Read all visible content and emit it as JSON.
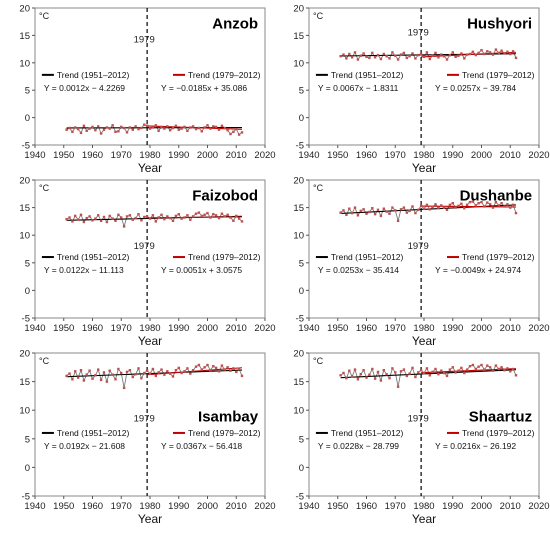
{
  "shared": {
    "type": "line",
    "unit_label": "°C",
    "xlabel": "Year",
    "x_ticks": [
      1940,
      1950,
      1960,
      1970,
      1980,
      1990,
      2000,
      2010,
      2020
    ],
    "y_ticks": [
      -5,
      0,
      5,
      10,
      15,
      20
    ],
    "xlim": [
      1940,
      2020
    ],
    "ylim": [
      -5,
      20
    ],
    "marker_year": 1979,
    "marker_label": "1979",
    "trend1_label": "Trend (1951–2012)",
    "trend2_label": "Trend (1979–2012)",
    "colors": {
      "observed": "#7a7a7a",
      "markers": "#c0504d",
      "trend1": "#000000",
      "trend2": "#c00000",
      "anomaly": "#c9a227",
      "marker_line": "#000000"
    }
  },
  "chart_data": [
    {
      "title": "Anzob",
      "years_start": 1951,
      "values": [
        -2.2,
        -1.9,
        -2.6,
        -1.8,
        -2.1,
        -2.8,
        -1.5,
        -2.4,
        -2.0,
        -1.7,
        -2.3,
        -1.6,
        -2.9,
        -2.2,
        -1.8,
        -2.0,
        -1.4,
        -2.6,
        -2.5,
        -1.7,
        -1.9,
        -2.7,
        -1.8,
        -2.2,
        -1.6,
        -2.1,
        -1.9,
        -1.3,
        -1.5,
        -2.0,
        -1.8,
        -1.4,
        -2.4,
        -1.7,
        -2.0,
        -1.6,
        -2.3,
        -1.9,
        -1.5,
        -2.2,
        -2.0,
        -1.7,
        -2.4,
        -1.8,
        -1.6,
        -2.1,
        -1.9,
        -2.5,
        -1.8,
        -1.4,
        -2.0,
        -1.6,
        -1.7,
        -2.2,
        -1.5,
        -1.9,
        -2.3,
        -3.0,
        -2.6,
        -2.1,
        -3.1,
        -2.7
      ],
      "trend1": {
        "slope": 0.0012,
        "intercept": -4.2269,
        "equation": "Y = 0.0012x − 4.2269"
      },
      "trend2": {
        "slope": -0.0185,
        "intercept": 35.086,
        "equation": "Y = −0.0185x + 35.086"
      }
    },
    {
      "title": "Hushyori",
      "years_start": 1951,
      "values": [
        11.2,
        11.5,
        10.8,
        11.6,
        11.0,
        11.9,
        10.6,
        11.3,
        11.7,
        11.1,
        10.9,
        11.8,
        11.0,
        11.4,
        10.7,
        11.6,
        11.2,
        10.8,
        11.9,
        11.3,
        10.6,
        11.5,
        11.8,
        10.9,
        11.2,
        11.7,
        10.8,
        11.4,
        11.6,
        11.1,
        11.9,
        10.7,
        11.3,
        11.8,
        11.0,
        11.5,
        11.2,
        10.6,
        11.4,
        11.9,
        11.1,
        11.3,
        11.7,
        10.8,
        11.5,
        11.6,
        12.0,
        11.4,
        11.8,
        12.3,
        11.6,
        12.1,
        11.9,
        11.5,
        12.4,
        11.8,
        12.2,
        11.7,
        12.0,
        11.6,
        12.1,
        10.9
      ],
      "trend1": {
        "slope": 0.0067,
        "intercept": -1.8311,
        "equation": "Y = 0.0067x − 1.8311"
      },
      "trend2": {
        "slope": 0.0257,
        "intercept": -39.784,
        "equation": "Y = 0.0257x − 39.784"
      }
    },
    {
      "title": "Faizobod",
      "years_start": 1951,
      "values": [
        12.9,
        13.2,
        12.5,
        13.5,
        12.8,
        13.7,
        12.4,
        13.1,
        13.4,
        12.7,
        13.0,
        13.6,
        12.6,
        13.3,
        12.4,
        13.5,
        13.0,
        12.6,
        13.7,
        13.2,
        11.6,
        13.4,
        13.6,
        12.8,
        13.1,
        13.8,
        12.7,
        13.3,
        13.4,
        13.0,
        13.6,
        12.5,
        13.2,
        13.7,
        12.9,
        13.4,
        13.1,
        12.6,
        13.5,
        13.8,
        13.0,
        13.2,
        13.6,
        12.8,
        13.4,
        13.9,
        14.1,
        13.5,
        13.7,
        14.0,
        13.2,
        13.8,
        13.6,
        13.1,
        13.9,
        13.4,
        13.7,
        13.2,
        12.6,
        13.5,
        13.0,
        12.5
      ],
      "trend1": {
        "slope": 0.0122,
        "intercept": -11.113,
        "equation": "Y = 0.0122x − 11.113"
      },
      "trend2": {
        "slope": 0.0051,
        "intercept": 3.0575,
        "equation": "Y = 0.0051x + 3.0575"
      }
    },
    {
      "title": "Dushanbe",
      "years_start": 1951,
      "values": [
        14.1,
        14.5,
        13.7,
        14.8,
        14.0,
        15.0,
        13.6,
        14.4,
        14.7,
        13.9,
        14.2,
        14.9,
        13.8,
        14.6,
        13.5,
        14.8,
        14.3,
        13.9,
        15.0,
        14.5,
        12.6,
        14.7,
        15.0,
        14.1,
        14.4,
        15.2,
        14.0,
        14.6,
        15.3,
        14.8,
        15.5,
        14.7,
        15.1,
        15.6,
        14.9,
        15.4,
        15.0,
        14.6,
        15.5,
        15.8,
        15.0,
        15.3,
        15.7,
        14.9,
        15.5,
        16.0,
        16.1,
        15.4,
        15.8,
        16.0,
        15.2,
        15.9,
        15.6,
        15.0,
        16.0,
        15.4,
        15.8,
        15.2,
        15.6,
        15.0,
        15.5,
        14.0
      ],
      "trend1": {
        "slope": 0.0253,
        "intercept": -35.414,
        "equation": "Y = 0.0253x − 35.414"
      },
      "trend2": {
        "slope": -0.0049,
        "intercept": 24.974,
        "equation": "Y = −0.0049x + 24.974"
      }
    },
    {
      "title": "Isambay",
      "years_start": 1951,
      "values": [
        16.0,
        16.4,
        15.4,
        16.8,
        15.7,
        17.0,
        15.2,
        16.2,
        16.9,
        15.5,
        16.1,
        17.1,
        15.3,
        16.6,
        15.0,
        16.9,
        16.2,
        15.4,
        17.2,
        16.5,
        13.9,
        16.7,
        17.0,
        15.8,
        16.3,
        17.3,
        15.6,
        16.5,
        16.9,
        16.4,
        17.2,
        16.0,
        16.6,
        17.1,
        16.2,
        16.8,
        16.4,
        15.9,
        17.0,
        17.4,
        16.5,
        16.8,
        17.3,
        16.4,
        17.0,
        17.6,
        17.9,
        17.1,
        17.5,
        17.9,
        17.0,
        17.7,
        17.4,
        16.8,
        17.8,
        17.1,
        17.5,
        16.9,
        17.3,
        16.7,
        17.2,
        16.0
      ],
      "trend1": {
        "slope": 0.0192,
        "intercept": -21.608,
        "equation": "Y = 0.0192x − 21.608"
      },
      "trend2": {
        "slope": 0.0367,
        "intercept": -56.418,
        "equation": "Y = 0.0367x − 56.418"
      }
    },
    {
      "title": "Shaartuz",
      "years_start": 1951,
      "values": [
        16.1,
        16.5,
        15.6,
        16.9,
        15.9,
        17.1,
        15.4,
        16.3,
        17.0,
        15.7,
        16.2,
        17.2,
        15.5,
        16.7,
        15.2,
        17.0,
        16.3,
        15.6,
        17.3,
        16.6,
        14.1,
        16.8,
        17.1,
        16.0,
        16.4,
        17.4,
        15.8,
        16.6,
        17.0,
        16.5,
        17.3,
        16.1,
        16.7,
        17.2,
        16.3,
        16.9,
        16.5,
        16.0,
        17.1,
        17.5,
        16.6,
        16.9,
        17.4,
        16.5,
        17.1,
        17.7,
        17.9,
        17.2,
        17.6,
        17.9,
        17.1,
        17.8,
        17.5,
        16.9,
        17.8,
        17.2,
        17.5,
        17.0,
        17.3,
        16.8,
        17.2,
        16.1
      ],
      "trend1": {
        "slope": 0.0228,
        "intercept": -28.799,
        "equation": "Y = 0.0228x − 28.799"
      },
      "trend2": {
        "slope": 0.0216,
        "intercept": -26.192,
        "equation": "Y = 0.0216x − 26.192"
      }
    }
  ]
}
